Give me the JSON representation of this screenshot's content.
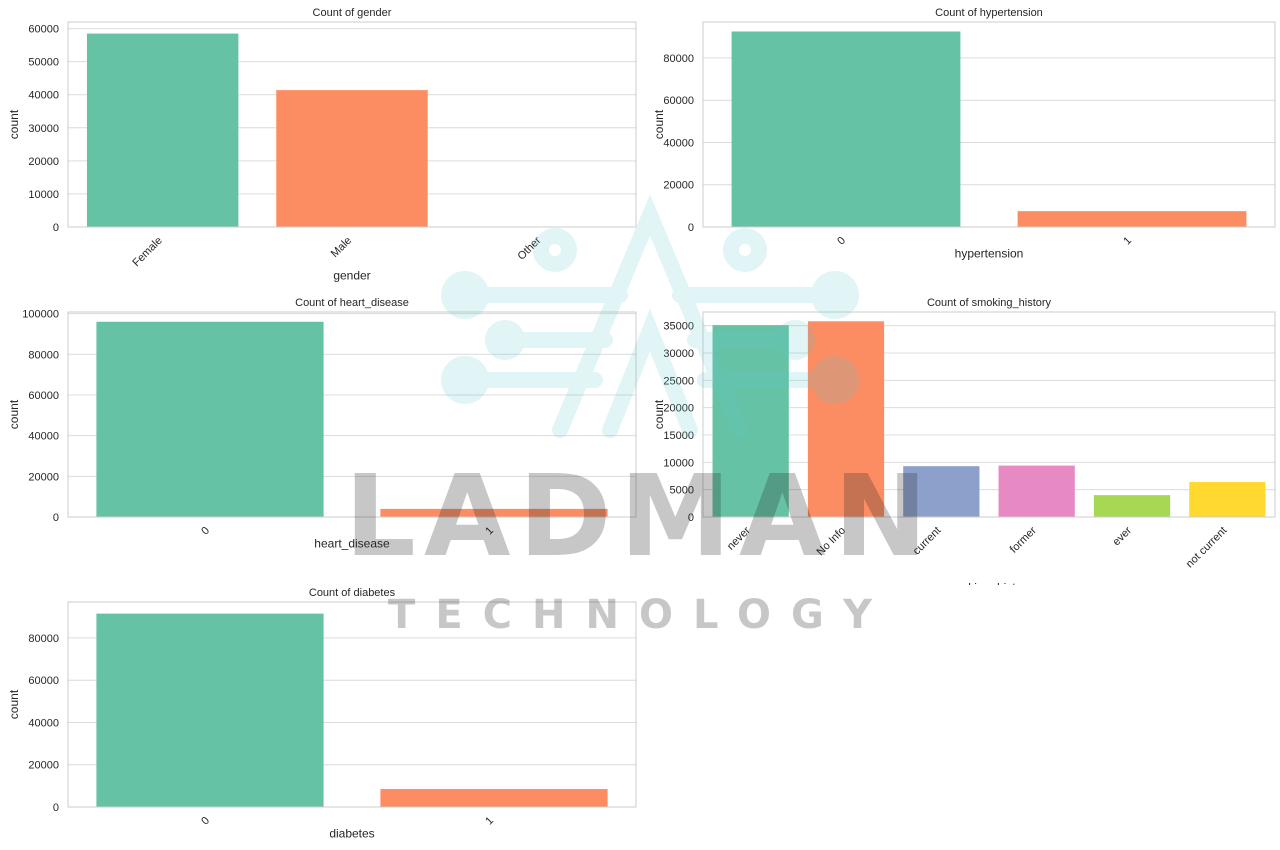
{
  "chart_data": [
    {
      "type": "bar",
      "title": "Count of gender",
      "xlabel": "gender",
      "ylabel": "count",
      "categories": [
        "Female",
        "Male",
        "Other"
      ],
      "values": [
        58500,
        41400,
        20
      ],
      "colors": [
        "#66c2a5",
        "#fc8d62",
        "#8da0cb"
      ],
      "ylim": [
        0,
        62000
      ],
      "yticks": [
        0,
        10000,
        20000,
        30000,
        40000,
        50000,
        60000
      ],
      "rotate_xticks": true,
      "grid": true
    },
    {
      "type": "bar",
      "title": "Count of hypertension",
      "xlabel": "hypertension",
      "ylabel": "count",
      "categories": [
        "0",
        "1"
      ],
      "values": [
        92500,
        7500
      ],
      "colors": [
        "#66c2a5",
        "#fc8d62"
      ],
      "ylim": [
        0,
        97000
      ],
      "yticks": [
        0,
        20000,
        40000,
        60000,
        80000
      ],
      "rotate_xticks": true,
      "grid": true
    },
    {
      "type": "bar",
      "title": "Count of heart_disease",
      "xlabel": "heart_disease",
      "ylabel": "count",
      "categories": [
        "0",
        "1"
      ],
      "values": [
        96000,
        4000
      ],
      "colors": [
        "#66c2a5",
        "#fc8d62"
      ],
      "ylim": [
        0,
        100800
      ],
      "yticks": [
        0,
        20000,
        40000,
        60000,
        80000,
        100000
      ],
      "rotate_xticks": true,
      "grid": true
    },
    {
      "type": "bar",
      "title": "Count of smoking_history",
      "xlabel": "smoking_history",
      "ylabel": "count",
      "categories": [
        "never",
        "No Info",
        "current",
        "former",
        "ever",
        "not current"
      ],
      "values": [
        35100,
        35800,
        9300,
        9400,
        4000,
        6400
      ],
      "colors": [
        "#66c2a5",
        "#fc8d62",
        "#8da0cb",
        "#e78ac3",
        "#a6d854",
        "#ffd92f"
      ],
      "ylim": [
        0,
        37500
      ],
      "yticks": [
        0,
        5000,
        10000,
        15000,
        20000,
        25000,
        30000,
        35000
      ],
      "rotate_xticks": true,
      "grid": true
    },
    {
      "type": "bar",
      "title": "Count of diabetes",
      "xlabel": "diabetes",
      "ylabel": "count",
      "categories": [
        "0",
        "1"
      ],
      "values": [
        91500,
        8500
      ],
      "colors": [
        "#66c2a5",
        "#fc8d62"
      ],
      "ylim": [
        0,
        97000
      ],
      "yticks": [
        0,
        20000,
        40000,
        60000,
        80000
      ],
      "rotate_xticks": true,
      "grid": true
    }
  ],
  "watermark": {
    "brand": "LADMAN",
    "tagline": "TECHNOLOGY",
    "color": "#5ec8cf"
  }
}
